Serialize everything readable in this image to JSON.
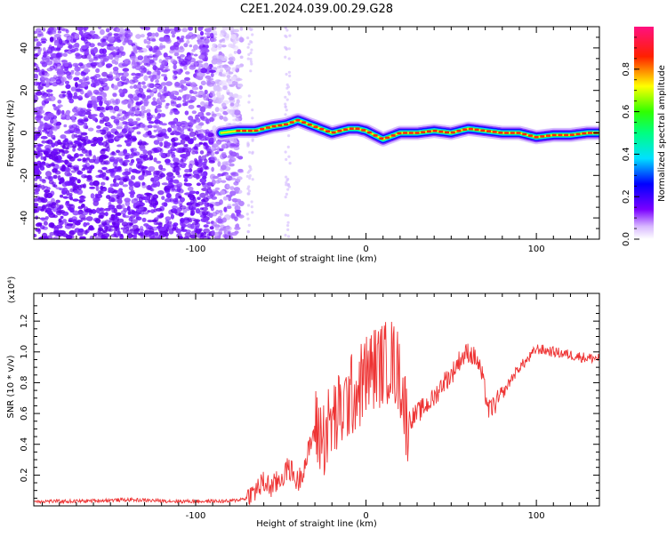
{
  "title": "C2E1.2024.039.00.29.G28",
  "colors": {
    "axis": "#000000",
    "snr_line": "#ee3333",
    "background": "#ffffff"
  },
  "chart_data": [
    {
      "type": "heatmap",
      "xlabel": "Height of straight line (km)",
      "ylabel": "Frequency (Hz)",
      "xlim": [
        -195,
        137
      ],
      "ylim": [
        -50,
        50
      ],
      "xticks": [
        -100,
        0,
        100
      ],
      "yticks": [
        -40,
        -20,
        0,
        20,
        40
      ],
      "colorbar": {
        "label": "Normalized spectral amplitude",
        "range": [
          0,
          1
        ],
        "ticks": [
          0.0,
          0.2,
          0.4,
          0.6,
          0.8
        ]
      },
      "noise_region_x": [
        -195,
        -73
      ],
      "ridge": {
        "x": [
          -85,
          -75,
          -65,
          -55,
          -47,
          -40,
          -30,
          -20,
          -10,
          -5,
          0,
          5,
          10,
          20,
          30,
          40,
          50,
          60,
          70,
          80,
          90,
          100,
          110,
          120,
          130,
          137
        ],
        "y": [
          0,
          1,
          1,
          3,
          4,
          6,
          3,
          0,
          2,
          2,
          1,
          -1,
          -3,
          0,
          0,
          1,
          0,
          2,
          1,
          0,
          0,
          -2,
          -1,
          -1,
          0,
          0
        ]
      }
    },
    {
      "type": "line",
      "xlabel": "Height of straight line (km)",
      "ylabel": "SNR (10 * v/v)",
      "multiplier_label": "(x10⁴)",
      "xlim": [
        -195,
        137
      ],
      "ylim": [
        0,
        1.38
      ],
      "xticks": [
        -100,
        0,
        100
      ],
      "yticks": [
        0.2,
        0.4,
        0.6,
        0.8,
        1.0,
        1.2
      ],
      "series": [
        {
          "x": [
            -195,
            -170,
            -140,
            -110,
            -80,
            -70,
            -65,
            -60,
            -55,
            -50,
            -45,
            -40,
            -35,
            -30,
            -25,
            -20,
            -15,
            -10,
            -5,
            0,
            5,
            10,
            15,
            20,
            24,
            28,
            35,
            40,
            45,
            50,
            55,
            60,
            65,
            68,
            72,
            75,
            80,
            85,
            90,
            95,
            100,
            110,
            120,
            130,
            137
          ],
          "y": [
            0.03,
            0.03,
            0.04,
            0.03,
            0.03,
            0.05,
            0.1,
            0.15,
            0.12,
            0.18,
            0.25,
            0.15,
            0.3,
            0.5,
            0.45,
            0.55,
            0.6,
            0.7,
            0.75,
            0.85,
            0.9,
            0.92,
            0.95,
            0.85,
            0.55,
            0.58,
            0.65,
            0.7,
            0.8,
            0.85,
            0.95,
            1.0,
            0.95,
            0.85,
            0.62,
            0.65,
            0.72,
            0.82,
            0.9,
            0.95,
            1.02,
            1.0,
            0.98,
            0.96,
            0.96
          ]
        }
      ]
    }
  ]
}
